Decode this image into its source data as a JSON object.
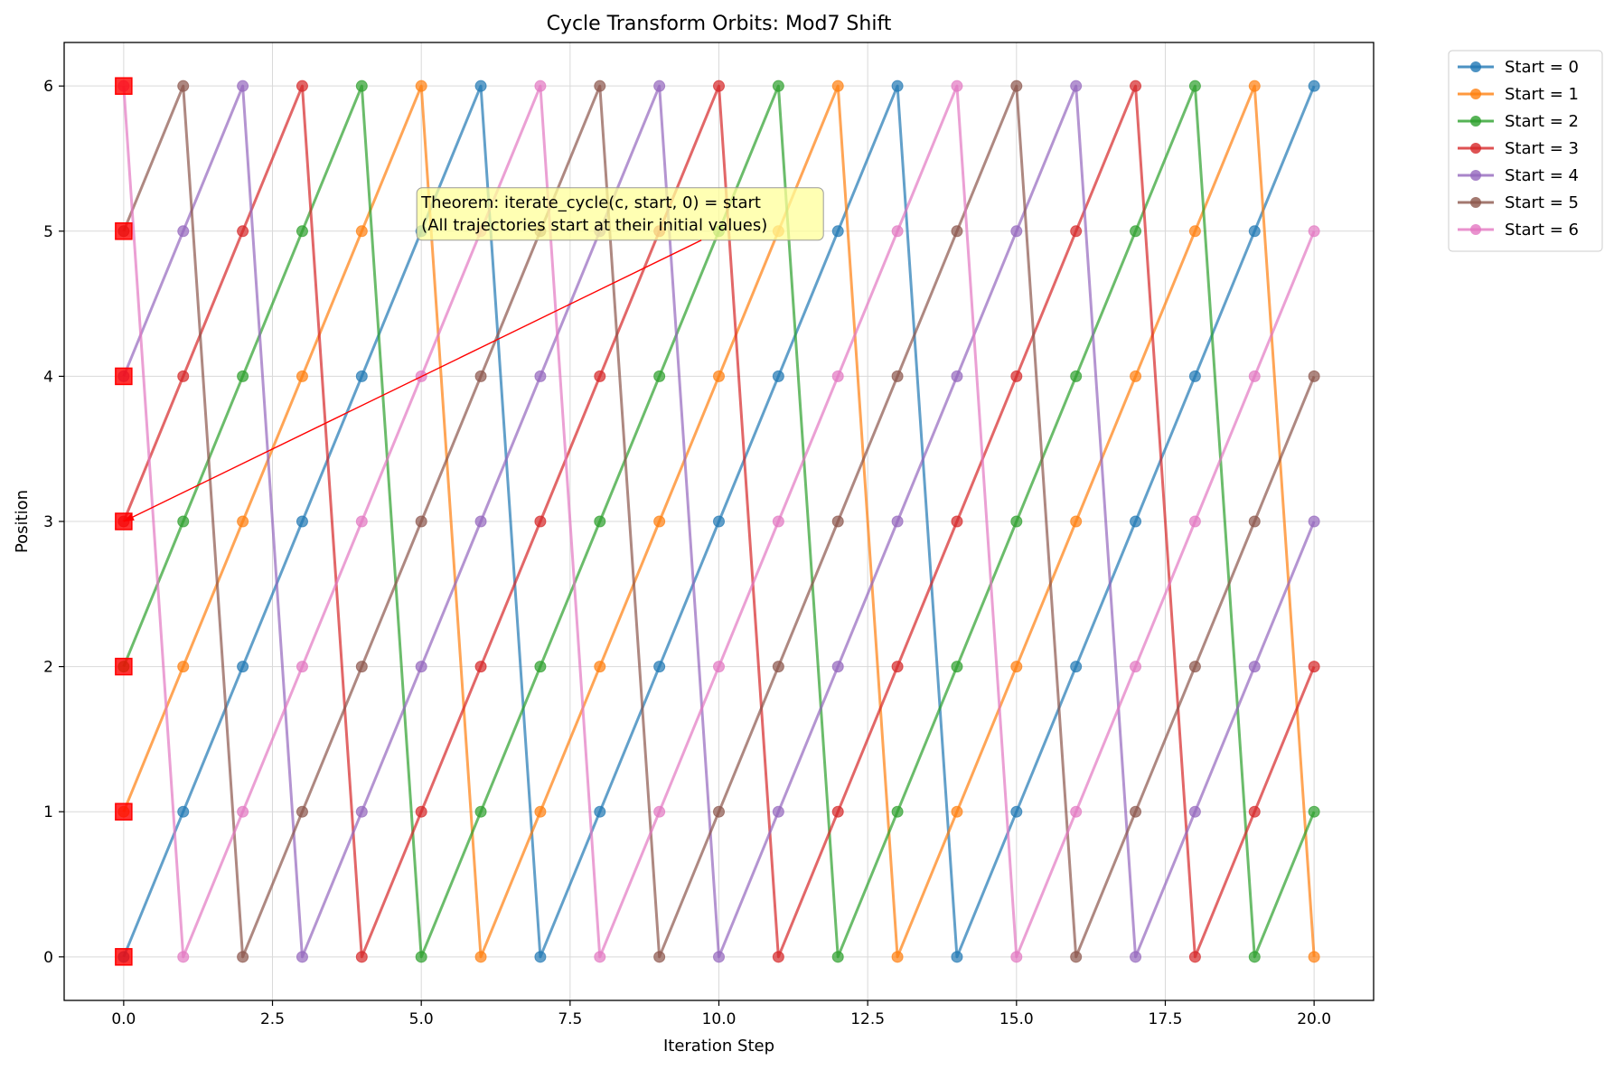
{
  "chart_data": {
    "type": "line",
    "title": "Cycle Transform Orbits: Mod7 Shift",
    "xlabel": "Iteration Step",
    "ylabel": "Position",
    "xlim": [
      -1,
      21
    ],
    "ylim": [
      -0.3,
      6.3
    ],
    "x_ticks": [
      0,
      2.5,
      5,
      7.5,
      10,
      12.5,
      15,
      17.5,
      20
    ],
    "x_tick_labels": [
      "0.0",
      "2.5",
      "5.0",
      "7.5",
      "10.0",
      "12.5",
      "15.0",
      "17.5",
      "20.0"
    ],
    "y_ticks": [
      0,
      1,
      2,
      3,
      4,
      5,
      6
    ],
    "y_tick_labels": [
      "0",
      "1",
      "2",
      "3",
      "4",
      "5",
      "6"
    ],
    "grid": true,
    "legend_position": "outside-top-right",
    "x": [
      0,
      1,
      2,
      3,
      4,
      5,
      6,
      7,
      8,
      9,
      10,
      11,
      12,
      13,
      14,
      15,
      16,
      17,
      18,
      19,
      20
    ],
    "series": [
      {
        "name": "Start = 0",
        "color": "#1f77b4",
        "values": [
          0,
          1,
          2,
          3,
          4,
          5,
          6,
          0,
          1,
          2,
          3,
          4,
          5,
          6,
          0,
          1,
          2,
          3,
          4,
          5,
          6
        ]
      },
      {
        "name": "Start = 1",
        "color": "#ff7f0e",
        "values": [
          1,
          2,
          3,
          4,
          5,
          6,
          0,
          1,
          2,
          3,
          4,
          5,
          6,
          0,
          1,
          2,
          3,
          4,
          5,
          6,
          0
        ]
      },
      {
        "name": "Start = 2",
        "color": "#2ca02c",
        "values": [
          2,
          3,
          4,
          5,
          6,
          0,
          1,
          2,
          3,
          4,
          5,
          6,
          0,
          1,
          2,
          3,
          4,
          5,
          6,
          0,
          1
        ]
      },
      {
        "name": "Start = 3",
        "color": "#d62728",
        "values": [
          3,
          4,
          5,
          6,
          0,
          1,
          2,
          3,
          4,
          5,
          6,
          0,
          1,
          2,
          3,
          4,
          5,
          6,
          0,
          1,
          2
        ]
      },
      {
        "name": "Start = 4",
        "color": "#9467bd",
        "values": [
          4,
          5,
          6,
          0,
          1,
          2,
          3,
          4,
          5,
          6,
          0,
          1,
          2,
          3,
          4,
          5,
          6,
          0,
          1,
          2,
          3
        ]
      },
      {
        "name": "Start = 5",
        "color": "#8c564b",
        "values": [
          5,
          6,
          0,
          1,
          2,
          3,
          4,
          5,
          6,
          0,
          1,
          2,
          3,
          4,
          5,
          6,
          0,
          1,
          2,
          3,
          4
        ]
      },
      {
        "name": "Start = 6",
        "color": "#e377c2",
        "values": [
          6,
          0,
          1,
          2,
          3,
          4,
          5,
          6,
          0,
          1,
          2,
          3,
          4,
          5,
          6,
          0,
          1,
          2,
          3,
          4,
          5
        ]
      }
    ],
    "start_markers": {
      "color": "#ff0000",
      "points": [
        [
          0,
          0
        ],
        [
          0,
          1
        ],
        [
          0,
          2
        ],
        [
          0,
          3
        ],
        [
          0,
          4
        ],
        [
          0,
          5
        ],
        [
          0,
          6
        ]
      ]
    },
    "annotation": {
      "lines": [
        "Theorem: iterate_cycle(c, start, 0) = start",
        "(All trajectories start at their initial values)"
      ],
      "text_at": [
        5,
        5
      ],
      "arrow_to": [
        0,
        3
      ],
      "box_color": "#ffff99",
      "arrow_color": "#ff0000"
    }
  }
}
